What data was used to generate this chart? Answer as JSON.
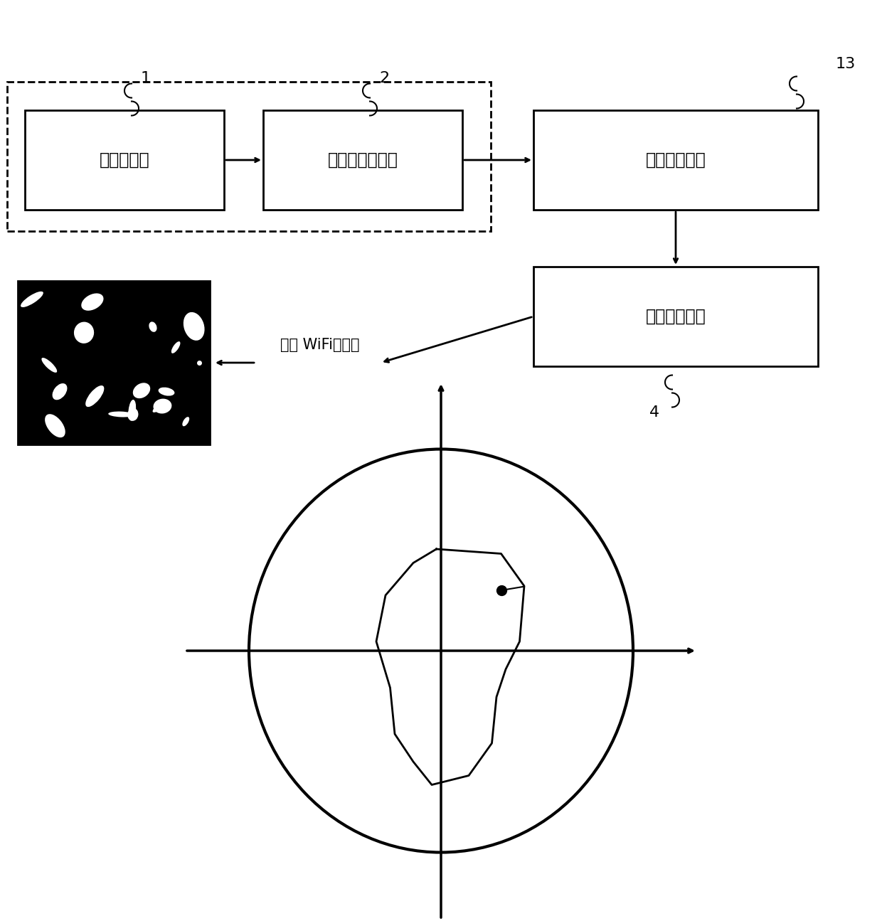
{
  "bg_color": "#ffffff",
  "box1_label": "数字测微计",
  "box2_label": "数据采集控制器",
  "box3_label": "多路串口服务",
  "box4_label": "数据通讯终端",
  "label1": "1",
  "label2": "2",
  "label3": "13",
  "label4": "4",
  "wifi_label": "无线 WiFi或有线",
  "dashed_box": true,
  "circle_color": "#000000",
  "line_color": "#000000"
}
